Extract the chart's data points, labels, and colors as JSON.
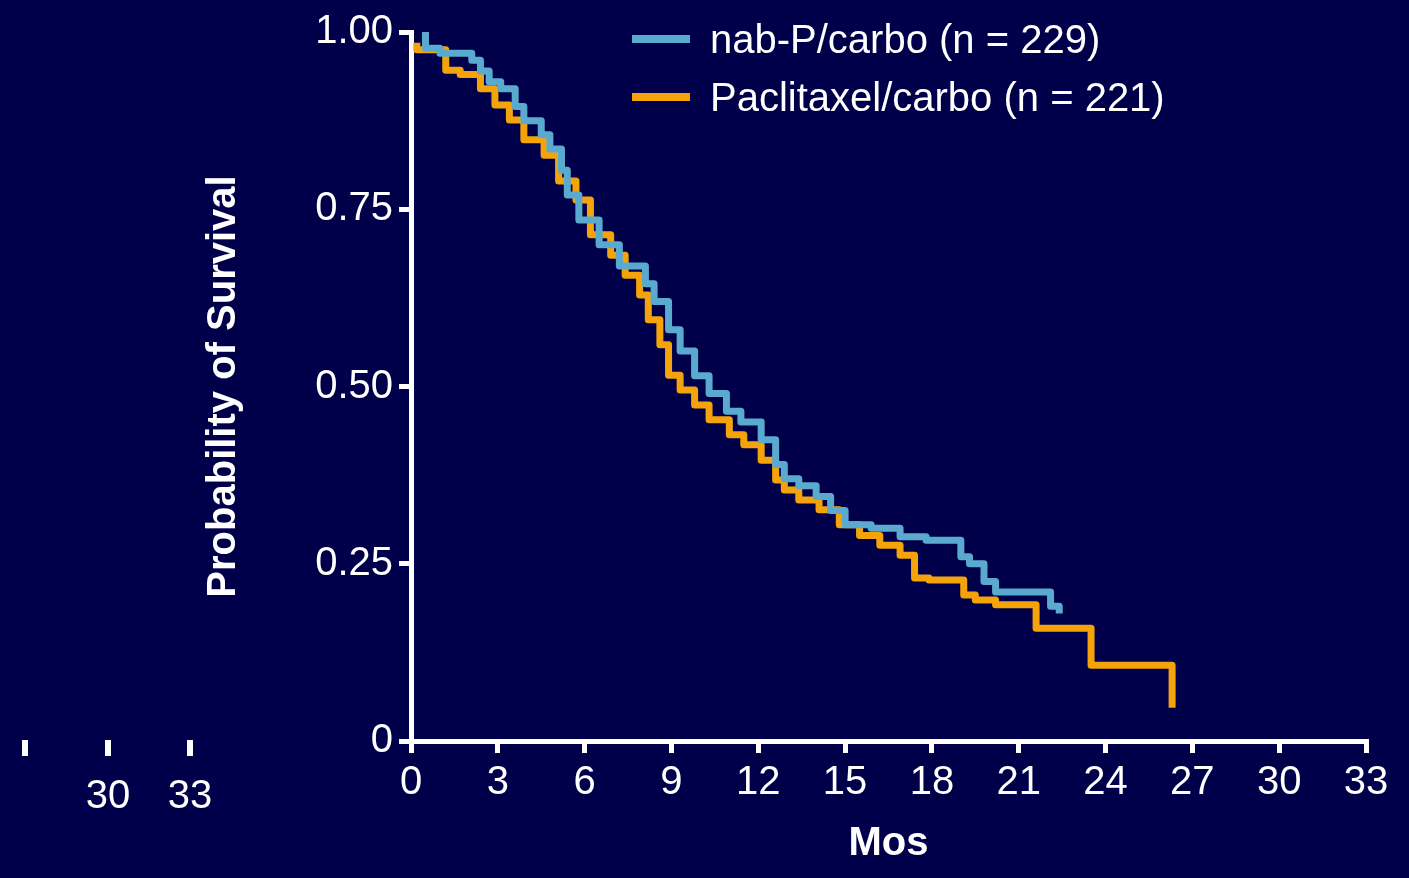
{
  "chart_data": {
    "type": "step",
    "xlabel": "Mos",
    "ylabel": "Probability of Survival",
    "xlim": [
      0,
      33
    ],
    "xticks": [
      0,
      3,
      6,
      9,
      12,
      15,
      18,
      21,
      24,
      27,
      30,
      33
    ],
    "ylim": [
      0,
      1
    ],
    "yticks": [
      {
        "value": 0,
        "label": "0"
      },
      {
        "value": 0.25,
        "label": "0.25"
      },
      {
        "value": 0.5,
        "label": "0.50"
      },
      {
        "value": 0.75,
        "label": "0.75"
      },
      {
        "value": 1,
        "label": "1.00"
      }
    ],
    "legend": "top right",
    "marker": "none",
    "line_style": "solid",
    "annotations": [
      "30",
      "33"
    ],
    "series": [
      {
        "name": "nab-P/carbo (n = 229)",
        "color": "#5aaad0",
        "x": [
          0.5,
          1.0,
          1.35,
          2.1,
          2.4,
          2.7,
          3.1,
          3.6,
          3.9,
          4.5,
          4.8,
          5.2,
          5.4,
          5.8,
          6.5,
          7.2,
          8.1,
          8.4,
          8.9,
          9.3,
          9.8,
          10.3,
          10.9,
          11.4,
          12.1,
          12.6,
          12.9,
          13.4,
          14.0,
          14.5,
          15.0,
          15.9,
          16.9,
          17.8,
          19.0,
          19.3,
          19.8,
          20.2,
          20.5,
          22.1,
          22.4,
          22.4
        ],
        "values": [
          1.0,
          0.977,
          0.97,
          0.97,
          0.96,
          0.945,
          0.93,
          0.92,
          0.895,
          0.875,
          0.855,
          0.835,
          0.805,
          0.77,
          0.735,
          0.7,
          0.67,
          0.645,
          0.62,
          0.58,
          0.55,
          0.515,
          0.49,
          0.465,
          0.45,
          0.425,
          0.39,
          0.37,
          0.36,
          0.345,
          0.325,
          0.305,
          0.3,
          0.288,
          0.283,
          0.26,
          0.25,
          0.225,
          0.21,
          0.21,
          0.19,
          0.18
        ]
      },
      {
        "name": "Paclitaxel/carbo (n = 221)",
        "color": "#f5a30a",
        "x": [
          0.2,
          1.2,
          1.7,
          2.4,
          2.9,
          3.4,
          3.9,
          4.6,
          5.1,
          5.7,
          6.2,
          6.9,
          7.4,
          7.9,
          8.2,
          8.6,
          8.9,
          9.3,
          9.8,
          10.3,
          11.0,
          11.5,
          12.1,
          12.6,
          12.9,
          13.4,
          14.1,
          14.8,
          15.5,
          16.2,
          16.9,
          17.4,
          17.9,
          19.1,
          19.5,
          20.2,
          21.6,
          21.8,
          23.5,
          24.0,
          26.3,
          26.3
        ],
        "values": [
          0.985,
          0.975,
          0.946,
          0.94,
          0.92,
          0.897,
          0.876,
          0.848,
          0.826,
          0.79,
          0.763,
          0.714,
          0.685,
          0.657,
          0.629,
          0.594,
          0.559,
          0.516,
          0.495,
          0.474,
          0.453,
          0.432,
          0.418,
          0.396,
          0.368,
          0.354,
          0.34,
          0.326,
          0.305,
          0.29,
          0.276,
          0.262,
          0.23,
          0.227,
          0.206,
          0.199,
          0.192,
          0.159,
          0.159,
          0.107,
          0.107,
          0.047
        ]
      }
    ]
  }
}
